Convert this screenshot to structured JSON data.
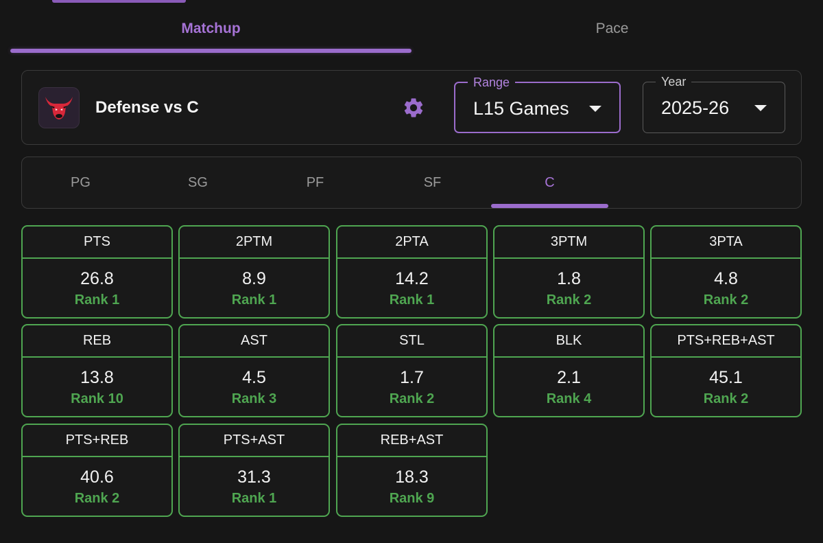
{
  "tabs": {
    "matchup": "Matchup",
    "pace": "Pace"
  },
  "header": {
    "title": "Defense vs C",
    "range": {
      "label": "Range",
      "value": "L15 Games"
    },
    "year": {
      "label": "Year",
      "value": "2025-26"
    }
  },
  "positions": [
    "PG",
    "SG",
    "PF",
    "SF",
    "C"
  ],
  "active_position": "C",
  "colors": {
    "accent": "#9b6ccc",
    "good": "#4fa651",
    "background": "#161616"
  },
  "stats": [
    {
      "label": "PTS",
      "value": "26.8",
      "rank": "Rank 1"
    },
    {
      "label": "2PTM",
      "value": "8.9",
      "rank": "Rank 1"
    },
    {
      "label": "2PTA",
      "value": "14.2",
      "rank": "Rank 1"
    },
    {
      "label": "3PTM",
      "value": "1.8",
      "rank": "Rank 2"
    },
    {
      "label": "3PTA",
      "value": "4.8",
      "rank": "Rank 2"
    },
    {
      "label": "REB",
      "value": "13.8",
      "rank": "Rank 10"
    },
    {
      "label": "AST",
      "value": "4.5",
      "rank": "Rank 3"
    },
    {
      "label": "STL",
      "value": "1.7",
      "rank": "Rank 2"
    },
    {
      "label": "BLK",
      "value": "2.1",
      "rank": "Rank 4"
    },
    {
      "label": "PTS+REB+AST",
      "value": "45.1",
      "rank": "Rank 2"
    },
    {
      "label": "PTS+REB",
      "value": "40.6",
      "rank": "Rank 2"
    },
    {
      "label": "PTS+AST",
      "value": "31.3",
      "rank": "Rank 1"
    },
    {
      "label": "REB+AST",
      "value": "18.3",
      "rank": "Rank 9"
    }
  ]
}
